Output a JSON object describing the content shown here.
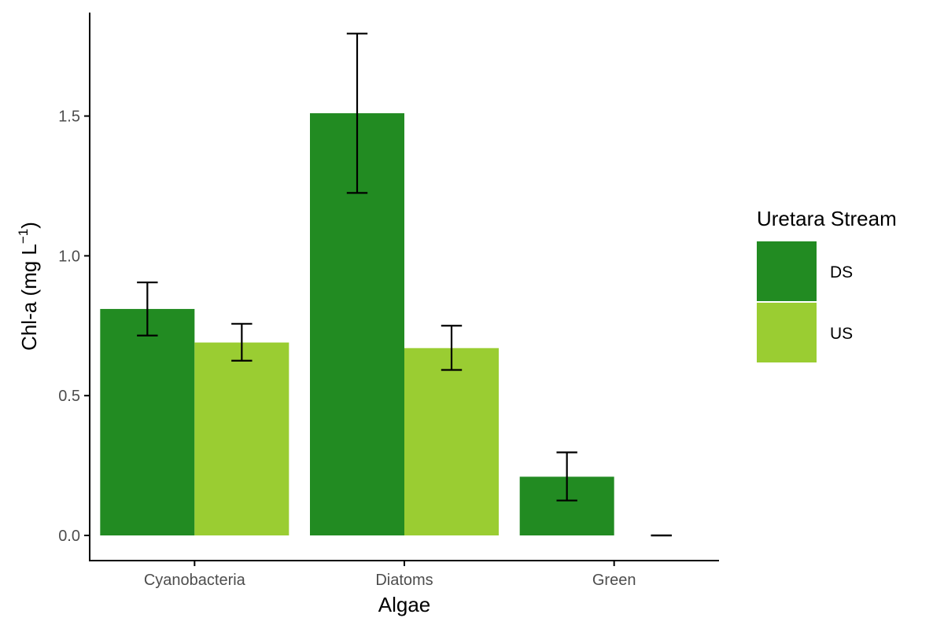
{
  "chart_data": {
    "type": "bar",
    "categories": [
      "Cyanobacteria",
      "Diatoms",
      "Green"
    ],
    "series": [
      {
        "name": "DS",
        "color": "#228B22",
        "values": [
          0.81,
          1.51,
          0.21
        ],
        "error_low": [
          0.715,
          1.225,
          0.125
        ],
        "error_high": [
          0.905,
          1.795,
          0.297
        ]
      },
      {
        "name": "US",
        "color": "#9ACD32",
        "values": [
          0.69,
          0.67,
          0.0
        ],
        "error_low": [
          0.625,
          0.592,
          0.0
        ],
        "error_high": [
          0.757,
          0.75,
          0.0
        ]
      }
    ],
    "xlabel": "Algae",
    "ylabel_main": "Chl-a (mg L",
    "ylabel_sup": "−1",
    "ylabel_close": ")",
    "ylim": [
      -0.09,
      1.87
    ],
    "yticks": [
      0.0,
      0.5,
      1.0,
      1.5
    ],
    "ytick_labels": [
      "0.0",
      "0.5",
      "1.0",
      "1.5"
    ],
    "legend": {
      "title": "Uretara Stream",
      "position": "right",
      "entries": [
        "DS",
        "US"
      ]
    },
    "grid": false
  }
}
